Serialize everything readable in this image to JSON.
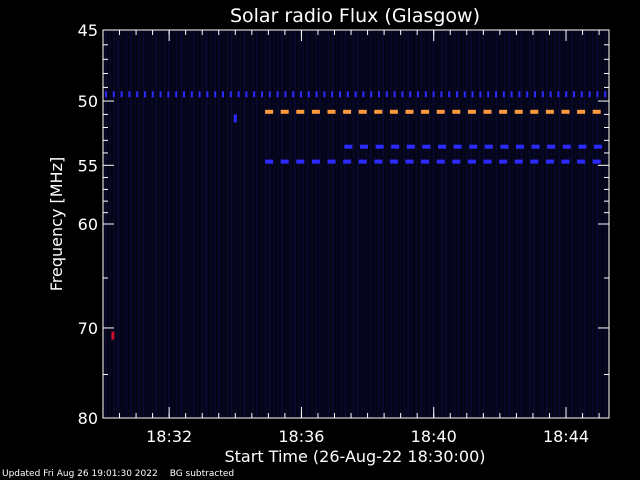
{
  "footer": {
    "updated": "Updated Fri Aug 26 19:01:30 2022",
    "status": "BG subtracted"
  },
  "colors": {
    "background": "#000000",
    "plot_background": "#050518",
    "axis": "#ffffff",
    "dark_blue": "#0a0a9a",
    "blue": "#2b2bff",
    "orange": "#ff9a3c",
    "red_spot": "#c8102e"
  },
  "chart_data": {
    "type": "heatmap",
    "title": "Solar radio Flux (Glasgow)",
    "xlabel": "Start Time (26-Aug-22 18:30:00)",
    "ylabel": "Frequency [MHz]",
    "x_unit": "minutes after 18:30",
    "xlim": [
      0,
      15.3
    ],
    "ylim": [
      45,
      80
    ],
    "y_scale": "log",
    "y_inverted": true,
    "x_ticks": [
      {
        "value": 2,
        "label": "18:32"
      },
      {
        "value": 6,
        "label": "18:36"
      },
      {
        "value": 10,
        "label": "18:40"
      },
      {
        "value": 14,
        "label": "18:44"
      }
    ],
    "x_minor_step": 0.5,
    "y_ticks": [
      {
        "value": 45,
        "label": "45"
      },
      {
        "value": 50,
        "label": "50"
      },
      {
        "value": 55,
        "label": "55"
      },
      {
        "value": 60,
        "label": "60"
      },
      {
        "value": 70,
        "label": "70"
      },
      {
        "value": 80,
        "label": "80"
      }
    ],
    "y_minor": [
      46,
      47,
      48,
      49,
      51,
      52,
      53,
      54,
      56,
      57,
      58,
      59,
      65,
      75
    ],
    "bands": [
      {
        "freq": 49.5,
        "t_start": 0.0,
        "t_end": 15.3,
        "color": "blue",
        "style": "dots"
      },
      {
        "freq": 50.8,
        "t_start": 4.9,
        "t_end": 15.3,
        "color": "orange",
        "style": "dashes"
      },
      {
        "freq": 53.5,
        "t_start": 7.3,
        "t_end": 15.3,
        "color": "blue",
        "style": "dashes"
      },
      {
        "freq": 54.7,
        "t_start": 4.9,
        "t_end": 15.3,
        "color": "blue",
        "style": "dashes"
      }
    ],
    "spots": [
      {
        "freq": 51.3,
        "t": 4.0,
        "color": "blue"
      },
      {
        "freq": 70.8,
        "t": 0.3,
        "color": "red_spot"
      }
    ]
  }
}
